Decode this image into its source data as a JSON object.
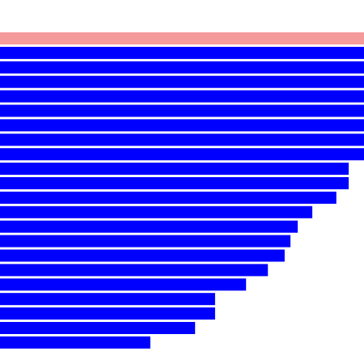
{
  "chart_data": {
    "type": "bar",
    "orientation": "horizontal",
    "values": [
      100,
      100,
      100,
      100,
      100,
      100,
      100,
      100,
      100,
      95.8,
      95.8,
      92.4,
      85.8,
      81.8,
      79.8,
      78.2,
      73.6,
      67.6,
      59.1,
      59.1,
      53.6,
      41.3
    ],
    "xlim": [
      0,
      100
    ],
    "grid": false,
    "colors": [
      "#f59a9a",
      "#0000ff",
      "#0000ff",
      "#0000ff",
      "#0000ff",
      "#0000ff",
      "#0000ff",
      "#0000ff",
      "#0000ff",
      "#0000ff",
      "#0000ff",
      "#0000ff",
      "#0000ff",
      "#0000ff",
      "#0000ff",
      "#0000ff",
      "#0000ff",
      "#0000ff",
      "#0000ff",
      "#0000ff",
      "#0000ff",
      "#0000ff"
    ]
  }
}
